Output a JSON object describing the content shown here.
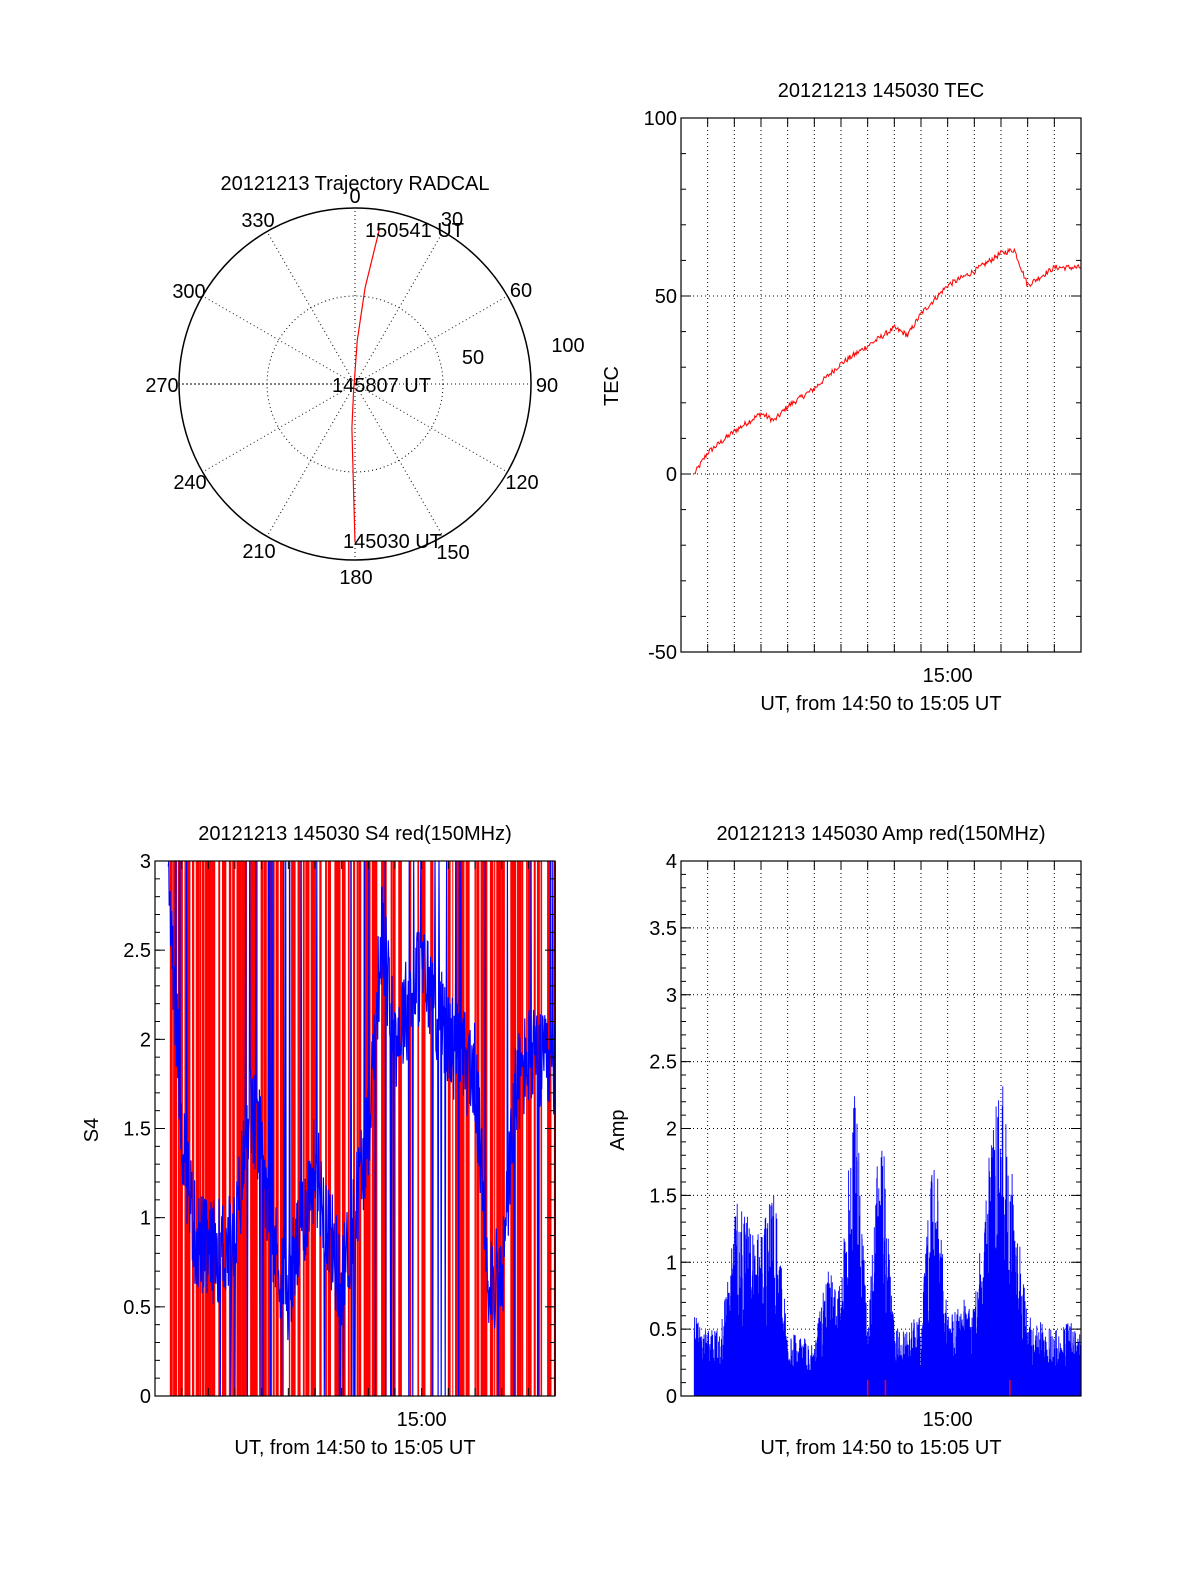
{
  "colors": {
    "red": "#ff0000",
    "blue": "#0000ff",
    "axis": "#000000",
    "grid": "#000000",
    "background": "#ffffff"
  },
  "chart_data": [
    {
      "id": "trajectory",
      "type": "polar",
      "title": "20121213 Trajectory RADCAL",
      "azimuth_labels": [
        "0",
        "30",
        "60",
        "90",
        "120",
        "150",
        "180",
        "210",
        "240",
        "270",
        "300",
        "330"
      ],
      "radial_labels": [
        "50",
        "100"
      ],
      "radial_max": 100,
      "grid": true,
      "series": [
        {
          "color": "red",
          "points": [
            [
              178,
              90
            ],
            [
              180,
              60
            ],
            [
              185,
              30
            ],
            [
              190,
              5
            ],
            [
              5,
              30
            ],
            [
              8,
              60
            ],
            [
              9,
              90
            ]
          ]
        }
      ],
      "annotations": [
        {
          "text": "150541 UT",
          "az": 9,
          "r": 90
        },
        {
          "text": "145807 UT",
          "az": 190,
          "r": 5
        },
        {
          "text": "145030 UT",
          "az": 178,
          "r": 90
        }
      ]
    },
    {
      "id": "tec",
      "type": "line",
      "title": "20121213 145030 TEC",
      "xlabel": "UT, from 14:50 to 15:05 UT",
      "ylabel": "TEC",
      "xlim": [
        "14:50",
        "15:05"
      ],
      "ylim": [
        -50,
        100
      ],
      "ytick_labels": [
        "100",
        "50",
        "0",
        "-50"
      ],
      "xtick_labels": [
        "15:00"
      ],
      "grid": true,
      "series": [
        {
          "color": "red",
          "x": [
            "14:50:30",
            "14:51:00",
            "14:52:00",
            "14:53:00",
            "14:53:30",
            "14:54:00",
            "14:55:00",
            "14:56:00",
            "14:57:00",
            "14:58:00",
            "14:58:30",
            "14:59:00",
            "15:00:00",
            "15:01:00",
            "15:02:00",
            "15:02:30",
            "15:03:00",
            "15:04:00",
            "15:05:00"
          ],
          "y": [
            0,
            6,
            12,
            17,
            15,
            19,
            24,
            31,
            36,
            41,
            39,
            45,
            53,
            57,
            62,
            63,
            53,
            58,
            58
          ]
        }
      ]
    },
    {
      "id": "s4",
      "type": "area",
      "title": "20121213 145030 S4 red(150MHz)",
      "xlabel": "UT, from 14:50 to 15:05 UT",
      "ylabel": "S4",
      "xlim": [
        "14:50",
        "15:05"
      ],
      "ylim": [
        0,
        3
      ],
      "ytick_labels": [
        "3",
        "2.5",
        "2",
        "1.5",
        "1",
        "0.5",
        "0"
      ],
      "xtick_labels": [
        "15:00"
      ],
      "grid": false,
      "series": [
        {
          "color": "red",
          "description_values": [
            3.0,
            3.0,
            3.0,
            3.0,
            3.0,
            3.0
          ]
        },
        {
          "color": "blue",
          "x": [
            "14:50:30",
            "14:51:00",
            "14:51:30",
            "14:52:00",
            "14:53:00",
            "14:53:30",
            "14:54:00",
            "14:54:30",
            "14:55:00",
            "14:56:00",
            "14:57:00",
            "14:58:00",
            "14:58:30",
            "14:59:00",
            "15:00:00",
            "15:01:00",
            "15:02:00",
            "15:02:30",
            "15:03:00",
            "15:03:30",
            "15:04:00",
            "15:05:00"
          ],
          "y": [
            3.0,
            1.5,
            0.9,
            0.8,
            0.85,
            1.6,
            1.4,
            0.8,
            0.6,
            1.3,
            0.6,
            1.5,
            2.6,
            2.0,
            2.4,
            2.0,
            1.8,
            0.7,
            0.6,
            1.7,
            1.9,
            1.8
          ]
        }
      ]
    },
    {
      "id": "amp",
      "type": "area",
      "title": "20121213 145030 Amp red(150MHz)",
      "xlabel": "UT, from 14:50 to 15:05 UT",
      "ylabel": "Amp",
      "xlim": [
        "14:50",
        "15:05"
      ],
      "ylim": [
        0,
        4
      ],
      "ytick_labels": [
        "4",
        "3.5",
        "3",
        "2.5",
        "2",
        "1.5",
        "1",
        "0.5",
        "0"
      ],
      "xtick_labels": [
        "15:00"
      ],
      "grid": true,
      "series": [
        {
          "color": "blue",
          "x": [
            "14:50:30",
            "14:51:00",
            "14:51:30",
            "14:52:00",
            "14:53:00",
            "14:53:30",
            "14:54:00",
            "14:55:00",
            "14:55:30",
            "14:56:00",
            "14:56:30",
            "14:57:00",
            "14:57:30",
            "14:58:00",
            "14:59:00",
            "14:59:30",
            "15:00:00",
            "15:01:00",
            "15:02:00",
            "15:02:30",
            "15:03:00",
            "15:04:00",
            "15:05:00"
          ],
          "y": [
            0.6,
            0.5,
            0.5,
            1.5,
            1.2,
            1.6,
            0.5,
            0.4,
            1.0,
            0.8,
            2.5,
            0.5,
            2.2,
            0.5,
            0.6,
            2.0,
            0.6,
            0.8,
            2.6,
            1.5,
            0.6,
            0.5,
            0.6
          ]
        }
      ]
    }
  ]
}
